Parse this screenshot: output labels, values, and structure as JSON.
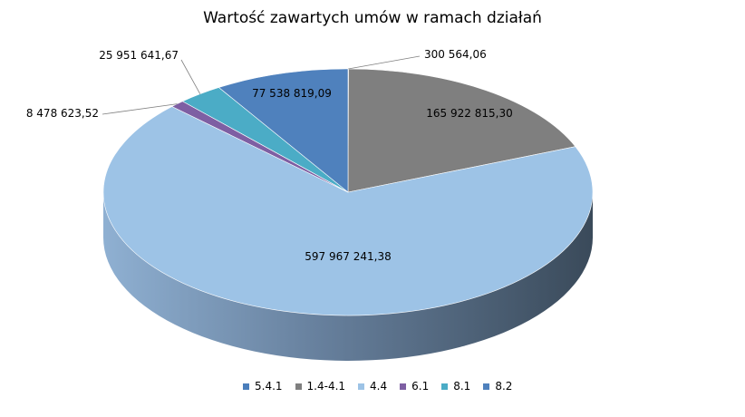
{
  "chart_data": {
    "type": "pie",
    "title": "Wartość zawartych umów w ramach działań",
    "slices": [
      {
        "label": "5.4.1",
        "value": 300564.06,
        "value_text": "300 564,06",
        "color": "#4a7ebb"
      },
      {
        "label": "1.4-4.1",
        "value": 165922815.3,
        "value_text": "165 922 815,30",
        "color": "#7f7f7f"
      },
      {
        "label": "4.4",
        "value": 597967241.38,
        "value_text": "597 967 241,38",
        "color": "#9dc3e6"
      },
      {
        "label": "6.1",
        "value": 8478623.52,
        "value_text": "8 478 623,52",
        "color": "#7e5fa3"
      },
      {
        "label": "8.1",
        "value": 25951641.67,
        "value_text": "25 951 641,67",
        "color": "#4bacc6"
      },
      {
        "label": "8.2",
        "value": 77538819.09,
        "value_text": "77 538 819,09",
        "color": "#4f81bd"
      }
    ],
    "legend_position": "bottom"
  }
}
